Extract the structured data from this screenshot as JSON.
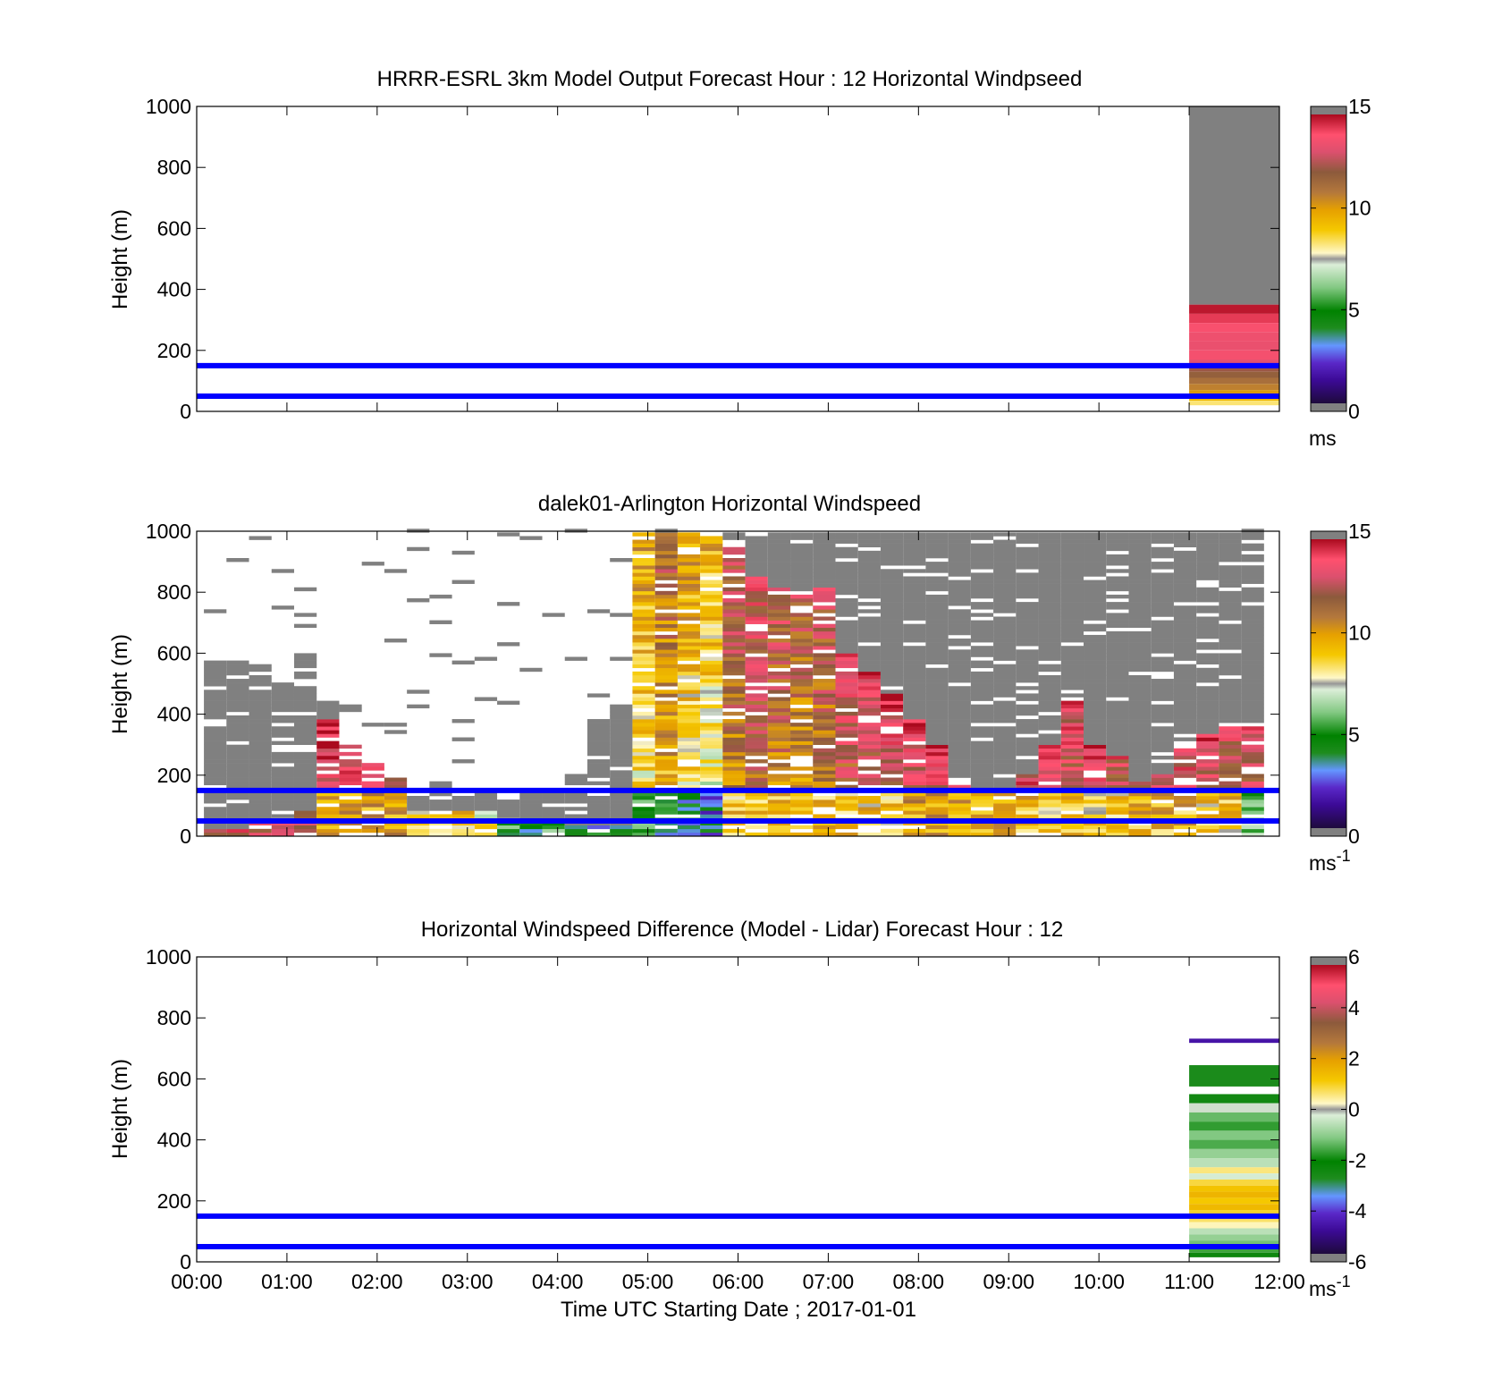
{
  "figure": {
    "xlabel": "Time UTC  Starting Date ; 2017-01-01"
  },
  "colors": {
    "nodata": "#808080",
    "reference_line": "#0000ff",
    "frame": "#000000"
  },
  "chart_data": [
    {
      "type": "heatmap",
      "title": "HRRR-ESRL 3km Model Output   Forecast Hour : 12 Horizontal Windpseed",
      "ylabel": "Height (m)",
      "ylim": [
        0,
        1000
      ],
      "xlim": [
        0,
        12
      ],
      "yticks": [
        "0",
        "200",
        "400",
        "600",
        "800",
        "1000"
      ],
      "xticks": [],
      "colorbar": {
        "range": [
          0,
          15
        ],
        "ticks": [
          "0",
          "5",
          "10",
          "15"
        ],
        "unit": "ms",
        "unit_sup": "",
        "palette": "speed"
      },
      "reference_lines_m": [
        50,
        150
      ],
      "cells": [
        {
          "x0": 11,
          "x1": 12,
          "y0": 350,
          "y1": 1000,
          "value": null
        },
        {
          "x0": 11,
          "x1": 12,
          "y0": 320,
          "y1": 350,
          "value": 14.8
        },
        {
          "x0": 11,
          "x1": 12,
          "y0": 290,
          "y1": 320,
          "value": 14.3
        },
        {
          "x0": 11,
          "x1": 12,
          "y0": 260,
          "y1": 290,
          "value": 13.8
        },
        {
          "x0": 11,
          "x1": 12,
          "y0": 230,
          "y1": 260,
          "value": 13.5
        },
        {
          "x0": 11,
          "x1": 12,
          "y0": 200,
          "y1": 230,
          "value": 13.4
        },
        {
          "x0": 11,
          "x1": 12,
          "y0": 170,
          "y1": 200,
          "value": 13.7
        },
        {
          "x0": 11,
          "x1": 12,
          "y0": 150,
          "y1": 170,
          "value": 13.2
        },
        {
          "x0": 11,
          "x1": 12,
          "y0": 130,
          "y1": 150,
          "value": 12.2
        },
        {
          "x0": 11,
          "x1": 12,
          "y0": 110,
          "y1": 130,
          "value": 11.8
        },
        {
          "x0": 11,
          "x1": 12,
          "y0": 90,
          "y1": 110,
          "value": 11.3
        },
        {
          "x0": 11,
          "x1": 12,
          "y0": 70,
          "y1": 90,
          "value": 10.8
        },
        {
          "x0": 11,
          "x1": 12,
          "y0": 50,
          "y1": 70,
          "value": 10.2
        },
        {
          "x0": 11,
          "x1": 12,
          "y0": 35,
          "y1": 50,
          "value": 9.4
        },
        {
          "x0": 11,
          "x1": 12,
          "y0": 20,
          "y1": 35,
          "value": 8.3
        }
      ]
    },
    {
      "type": "heatmap",
      "title": "dalek01-Arlington  Horizontal Windspeed",
      "ylabel": "Height (m)",
      "ylim": [
        0,
        1000
      ],
      "xlim": [
        0,
        12
      ],
      "yticks": [
        "0",
        "200",
        "400",
        "600",
        "800",
        "1000"
      ],
      "xticks": [],
      "colorbar": {
        "range": [
          0,
          15
        ],
        "ticks": [
          "0",
          "5",
          "10",
          "15"
        ],
        "unit": "ms",
        "unit_sup": "-1",
        "palette": "speed"
      },
      "reference_lines_m": [
        50,
        150
      ],
      "columns": {
        "start": 0.08,
        "width": 0.25,
        "gray_top": [
          580,
          580,
          560,
          500,
          610,
          440,
          200,
          200,
          160,
          130,
          180,
          130,
          160,
          120,
          160,
          160,
          200,
          380,
          430,
          1000,
          1000,
          1000,
          1000,
          1000,
          1000,
          1000,
          1000,
          1000,
          1000,
          1000,
          1000,
          1000,
          1000,
          1000,
          1000,
          1000,
          1000,
          1000,
          1000,
          1000,
          1000,
          1000,
          1000,
          1000,
          1000,
          1000,
          1000
        ],
        "color_top": [
          30,
          30,
          50,
          60,
          80,
          380,
          300,
          240,
          190,
          90,
          90,
          80,
          80,
          60,
          60,
          50,
          40,
          40,
          40,
          1000,
          1000,
          1000,
          1000,
          950,
          850,
          820,
          800,
          820,
          600,
          540,
          470,
          380,
          300,
          190,
          150,
          150,
          210,
          300,
          440,
          300,
          260,
          180,
          200,
          290,
          340,
          360,
          370
        ],
        "base_speed": [
          10,
          11,
          11,
          12,
          12,
          13.5,
          13,
          12.5,
          12,
          11,
          11,
          11,
          10,
          8,
          7,
          8,
          7,
          7,
          7,
          9,
          10.5,
          9,
          8.5,
          11.5,
          12,
          11.5,
          11,
          11.5,
          12.5,
          12.5,
          13,
          13,
          13,
          12.5,
          12.5,
          12.5,
          12.5,
          12.5,
          12.5,
          12.5,
          12,
          12,
          12,
          12.5,
          12.5,
          12,
          12.5
        ],
        "low_speed": [
          13,
          13,
          13,
          13,
          12,
          10,
          10,
          10,
          10,
          9,
          9,
          9,
          8,
          5,
          4,
          5,
          4,
          4,
          4,
          5,
          4,
          4,
          3,
          9,
          9,
          9,
          9,
          9,
          9,
          9,
          9,
          10,
          10,
          10,
          10,
          10,
          9.5,
          9,
          9,
          9,
          9,
          9.5,
          9.5,
          9.5,
          9,
          9,
          6
        ]
      }
    },
    {
      "type": "heatmap",
      "title": "Horizontal Windspeed Difference (Model - Lidar) Forecast Hour : 12",
      "ylabel": "Height (m)",
      "ylim": [
        0,
        1000
      ],
      "xlim": [
        0,
        12
      ],
      "yticks": [
        "0",
        "200",
        "400",
        "600",
        "800",
        "1000"
      ],
      "xticks": [
        "00:00",
        "01:00",
        "02:00",
        "03:00",
        "04:00",
        "05:00",
        "06:00",
        "07:00",
        "08:00",
        "09:00",
        "10:00",
        "11:00",
        "12:00"
      ],
      "colorbar": {
        "range": [
          -6,
          6
        ],
        "ticks": [
          "-6",
          "-4",
          "-2",
          "0",
          "2",
          "4",
          "6"
        ],
        "unit": "ms",
        "unit_sup": "-1",
        "palette": "diff"
      },
      "reference_lines_m": [
        50,
        150
      ],
      "cells": [
        {
          "x0": 11,
          "x1": 12,
          "y0": 718,
          "y1": 732,
          "value": -4.8
        },
        {
          "x0": 11,
          "x1": 12,
          "y0": 575,
          "y1": 645,
          "value": -2.8
        },
        {
          "x0": 11,
          "x1": 12,
          "y0": 520,
          "y1": 550,
          "value": -2.6
        },
        {
          "x0": 11,
          "x1": 12,
          "y0": 490,
          "y1": 520,
          "value": -0.2
        },
        {
          "x0": 11,
          "x1": 12,
          "y0": 460,
          "y1": 490,
          "value": -1.4
        },
        {
          "x0": 11,
          "x1": 12,
          "y0": 430,
          "y1": 460,
          "value": -1.8
        },
        {
          "x0": 11,
          "x1": 12,
          "y0": 400,
          "y1": 430,
          "value": -1.2
        },
        {
          "x0": 11,
          "x1": 12,
          "y0": 370,
          "y1": 400,
          "value": -1.6
        },
        {
          "x0": 11,
          "x1": 12,
          "y0": 340,
          "y1": 370,
          "value": -1.0
        },
        {
          "x0": 11,
          "x1": 12,
          "y0": 310,
          "y1": 340,
          "value": -0.6
        },
        {
          "x0": 11,
          "x1": 12,
          "y0": 290,
          "y1": 310,
          "value": 0.6
        },
        {
          "x0": 11,
          "x1": 12,
          "y0": 270,
          "y1": 290,
          "value": -0.3
        },
        {
          "x0": 11,
          "x1": 12,
          "y0": 250,
          "y1": 270,
          "value": 0.9
        },
        {
          "x0": 11,
          "x1": 12,
          "y0": 230,
          "y1": 250,
          "value": 1.3
        },
        {
          "x0": 11,
          "x1": 12,
          "y0": 210,
          "y1": 230,
          "value": 1.6
        },
        {
          "x0": 11,
          "x1": 12,
          "y0": 190,
          "y1": 210,
          "value": 1.2
        },
        {
          "x0": 11,
          "x1": 12,
          "y0": 170,
          "y1": 190,
          "value": 1.5
        },
        {
          "x0": 11,
          "x1": 12,
          "y0": 150,
          "y1": 170,
          "value": 1.0
        },
        {
          "x0": 11,
          "x1": 12,
          "y0": 130,
          "y1": 150,
          "value": 0.7
        },
        {
          "x0": 11,
          "x1": 12,
          "y0": 110,
          "y1": 130,
          "value": 0.3
        },
        {
          "x0": 11,
          "x1": 12,
          "y0": 90,
          "y1": 110,
          "value": -0.6
        },
        {
          "x0": 11,
          "x1": 12,
          "y0": 70,
          "y1": 90,
          "value": -1.0
        },
        {
          "x0": 11,
          "x1": 12,
          "y0": 50,
          "y1": 70,
          "value": -1.3
        },
        {
          "x0": 11,
          "x1": 12,
          "y0": 30,
          "y1": 50,
          "value": -1.7
        },
        {
          "x0": 11,
          "x1": 12,
          "y0": 15,
          "y1": 30,
          "value": -2.5
        }
      ]
    }
  ]
}
